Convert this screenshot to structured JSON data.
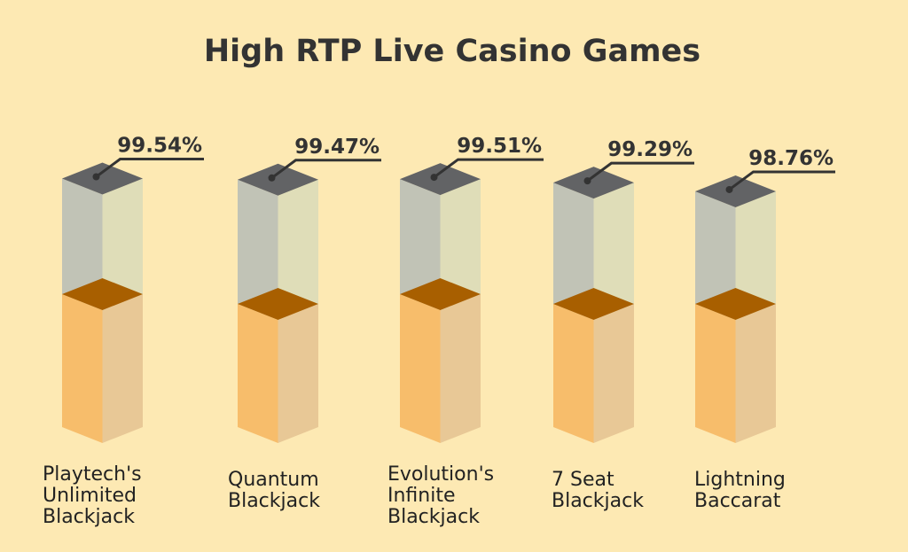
{
  "chart_data": {
    "type": "bar",
    "title": "High RTP Live Casino Games",
    "categories": [
      "Playtech's\nUnlimited\nBlackjack",
      "Quantum\nBlackjack",
      "Evolution's\nInfinite\nBlackjack",
      "7 Seat\nBlackjack",
      "Lightning\nBaccarat"
    ],
    "values": [
      99.54,
      99.47,
      99.51,
      99.29,
      98.76
    ],
    "value_labels": [
      "99.54%",
      "99.47%",
      "99.51%",
      "99.29%",
      "98.76%"
    ],
    "unit": "%",
    "style": "3d-columns",
    "legend": "none",
    "grid": false
  },
  "colors": {
    "background": "#fde9b3",
    "title": "#333333",
    "top_cap": "#626365",
    "upper_left": "#c1c3b6",
    "upper_right": "#dfddb8",
    "lower_left": "#f7bd6b",
    "lower_right": "#e8c896",
    "mid_face": "#a85f00",
    "leader_line": "#333333",
    "value_text": "#333333",
    "category_text": "#222222"
  }
}
